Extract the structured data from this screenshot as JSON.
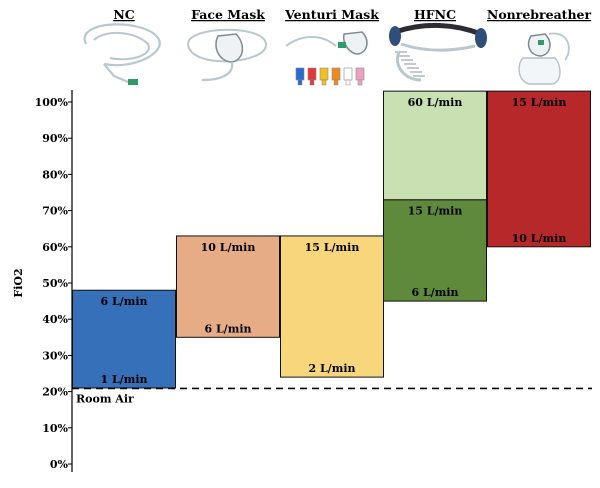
{
  "chart_data": {
    "type": "bar",
    "title": "",
    "xlabel": "",
    "ylabel": "FiO2",
    "ylim": [
      0,
      100
    ],
    "y_ticks": [
      "0%",
      "10%",
      "20%",
      "30%",
      "40%",
      "50%",
      "60%",
      "70%",
      "80%",
      "90%",
      "100%"
    ],
    "grid": false,
    "reference_line": {
      "label": "Room Air",
      "value": 21,
      "style": "dashed"
    },
    "devices": [
      {
        "name": "NC",
        "icon": "nasal-cannula-icon",
        "bands": [
          {
            "low": 21,
            "high": 48,
            "color": "#3570b8",
            "low_label": "1 L/min",
            "high_label": "6 L/min"
          }
        ]
      },
      {
        "name": "Face Mask",
        "icon": "face-mask-icon",
        "bands": [
          {
            "low": 35,
            "high": 63,
            "color": "#e6ac85",
            "low_label": "6 L/min",
            "high_label": "10 L/min"
          }
        ]
      },
      {
        "name": "Venturi Mask",
        "icon": "venturi-mask-icon",
        "bands": [
          {
            "low": 24,
            "high": 63,
            "color": "#f8d77c",
            "low_label": "2 L/min",
            "high_label": "15 L/min"
          }
        ]
      },
      {
        "name": "HFNC",
        "icon": "high-flow-nasal-cannula-icon",
        "bands": [
          {
            "low": 45,
            "high": 73,
            "color": "#5f8a3c",
            "low_label": "6 L/min",
            "high_label": "15 L/min"
          },
          {
            "low": 73,
            "high": 103,
            "color": "#c9e0b3",
            "low_label": "",
            "high_label": "60 L/min"
          }
        ]
      },
      {
        "name": "Nonrebreather",
        "icon": "nonrebreather-mask-icon",
        "bands": [
          {
            "low": 60,
            "high": 103,
            "color": "#b6282a",
            "low_label": "10 L/min",
            "high_label": "15 L/min"
          }
        ]
      }
    ]
  }
}
